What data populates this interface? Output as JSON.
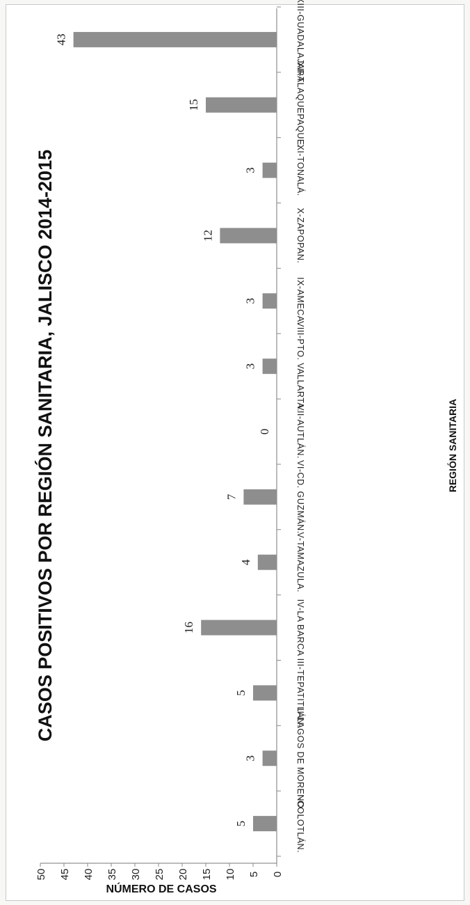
{
  "chart_data": {
    "type": "bar",
    "orientation": "horizontal-rotated",
    "title": "CASOS POSITIVOS POR REGIÓN SANITARIA, JALISCO 2014-2015",
    "xlabel": "REGIÓN SANITARIA",
    "ylabel": "NÚMERO DE CASOS",
    "ylim": [
      0,
      50
    ],
    "yticks": [
      "0",
      "5",
      "10",
      "15",
      "20",
      "25",
      "30",
      "35",
      "40",
      "45",
      "50"
    ],
    "categories": [
      "I-COLOTLÁN.",
      "II-LAGOS DE MORENO",
      "III-TEPATITLÁN.",
      "IV-LA BARCA",
      "V-TAMAZULA.",
      "VI-CD. GUZMÁN.",
      "VII-AUTLÁN.",
      "VIII-PTO. VALLARTA.",
      "IX-AMECA.",
      "X-ZAPOPAN.",
      "XI-TONALÁ.",
      "XII-TLAQUEPAQUE.",
      "XIII-GUADALAJARA"
    ],
    "values": [
      5,
      3,
      5,
      16,
      4,
      7,
      0,
      3,
      3,
      12,
      3,
      15,
      43
    ],
    "data_labels": [
      "5",
      "3",
      "5",
      "16",
      "4",
      "7",
      "0",
      "3",
      "3",
      "12",
      "3",
      "15",
      "43"
    ],
    "bar_color": "#8e8e8e",
    "grid": false,
    "legend": "none"
  }
}
